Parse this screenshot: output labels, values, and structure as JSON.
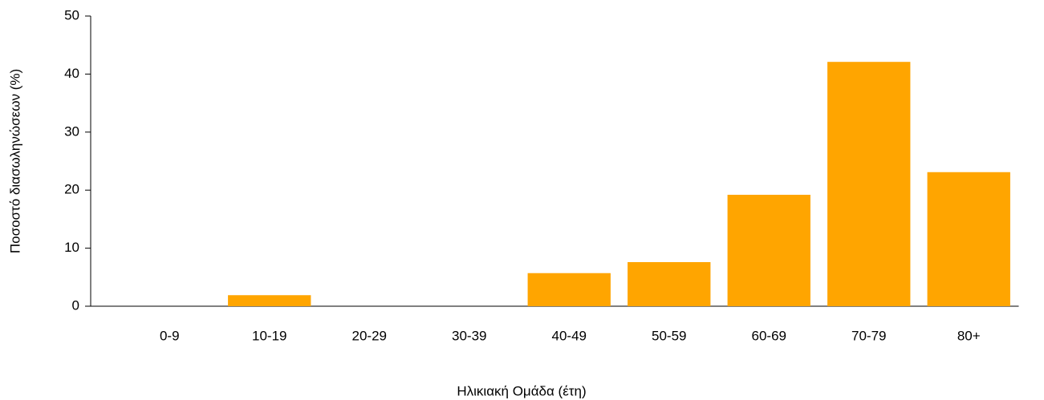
{
  "chart_data": {
    "type": "bar",
    "x_label": "Ηλικιακή Ομάδα (έτη)",
    "y_label": "Ποσοστό διασωληνώσεων (%)",
    "categories": [
      "0-9",
      "10-19",
      "20-29",
      "30-39",
      "40-49",
      "50-59",
      "60-69",
      "70-79",
      "80+"
    ],
    "values": [
      0,
      1.9,
      0,
      0,
      5.7,
      7.6,
      19.2,
      42.1,
      23.1
    ],
    "color": "#ffa500",
    "ylim": [
      0,
      50
    ],
    "yticks": [
      0,
      10,
      20,
      30,
      40,
      50
    ],
    "grid": false
  }
}
